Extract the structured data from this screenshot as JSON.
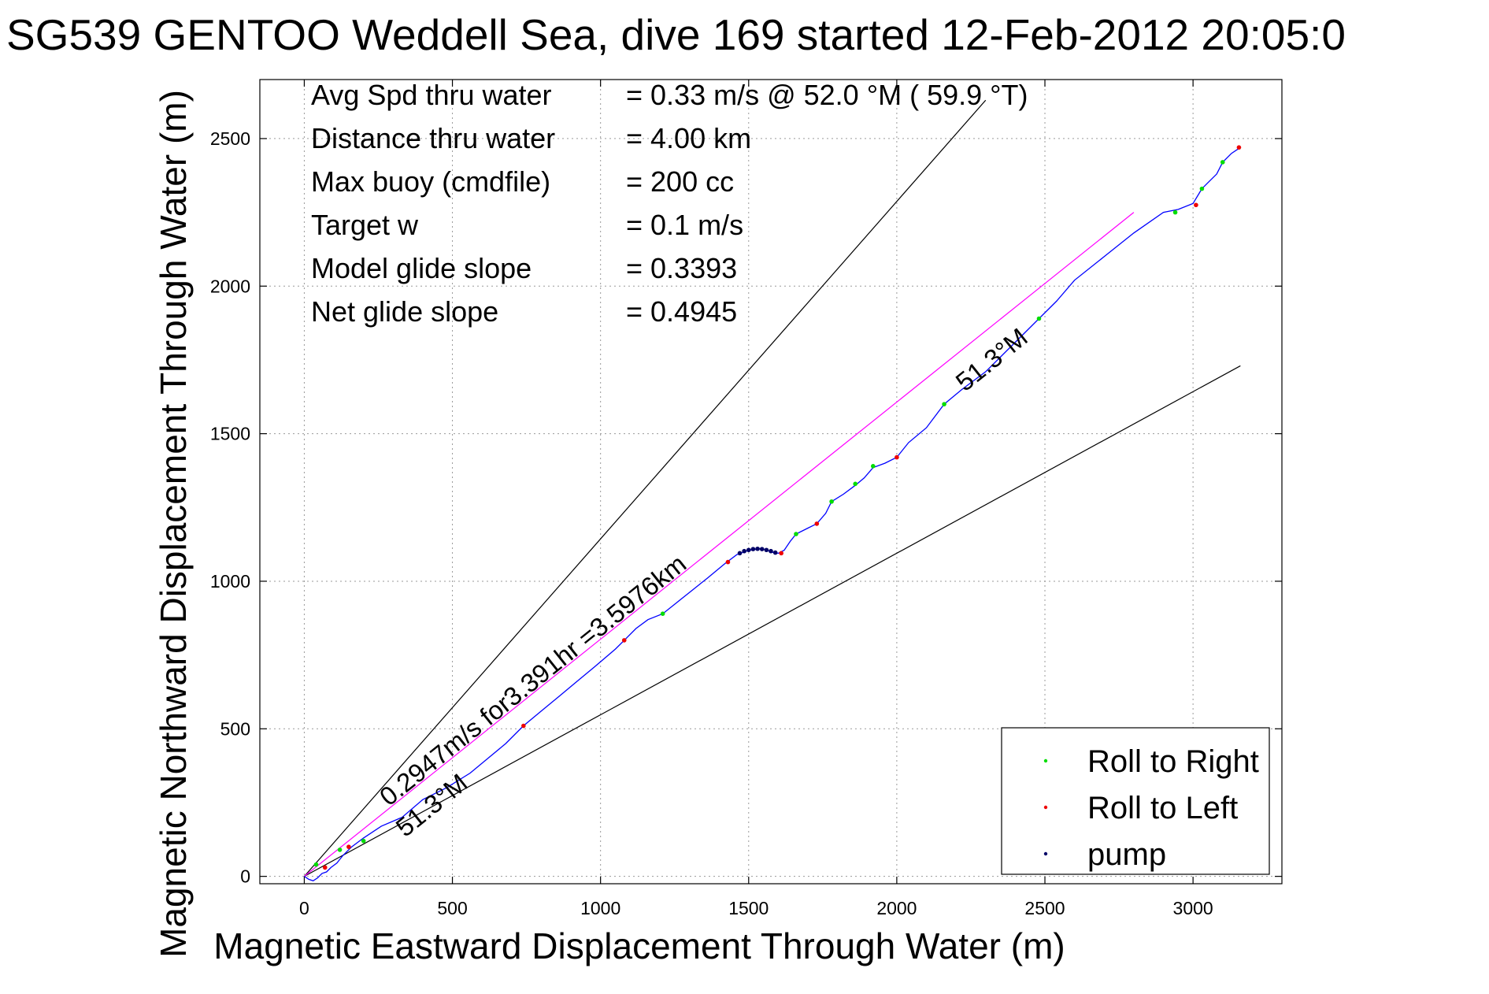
{
  "chart_data": {
    "type": "line",
    "title": "SG539 GENTOO Weddell Sea, dive 169 started 12-Feb-2012 20:05:0",
    "xlabel": "Magnetic Eastward Displacement Through Water (m)",
    "ylabel": "Magnetic Northward Displacement Through Water (m)",
    "xlim": [
      -150,
      3300
    ],
    "ylim": [
      -25,
      2700
    ],
    "xticks": [
      0,
      500,
      1000,
      1500,
      2000,
      2500,
      3000
    ],
    "yticks": [
      0,
      500,
      1000,
      1500,
      2000,
      2500
    ],
    "grid": true,
    "legend_position": "bottom-right",
    "stats": [
      {
        "label": "Avg Spd thru water",
        "value": "=  0.33 m/s @  52.0 °M ( 59.9 °T)"
      },
      {
        "label": "Distance thru water",
        "value": "=  4.00 km"
      },
      {
        "label": "Max buoy (cmdfile)",
        "value": "= 200 cc"
      },
      {
        "label": "Target w",
        "value": "= 0.1 m/s"
      },
      {
        "label": "Model glide slope",
        "value": "= 0.3393"
      },
      {
        "label": "Net glide slope",
        "value": "= 0.4945"
      }
    ],
    "annotations": [
      {
        "text": "0.2947m/s for3.391hr =3.5976km",
        "x": 285,
        "y": 235,
        "angle": 38.7
      },
      {
        "text": "51.3°M",
        "x": 340,
        "y": 130,
        "angle": 38.7
      },
      {
        "text": "51.3°M",
        "x": 2230,
        "y": 1640,
        "angle": 38.7
      }
    ],
    "reference_lines": [
      {
        "name": "upper bound",
        "color": "#000000",
        "points": [
          [
            0,
            0
          ],
          [
            2300,
            2630
          ]
        ]
      },
      {
        "name": "lower bound",
        "color": "#000000",
        "points": [
          [
            0,
            0
          ],
          [
            3160,
            1730
          ]
        ]
      },
      {
        "name": "net heading",
        "color": "#ff00ff",
        "points": [
          [
            0,
            0
          ],
          [
            2800,
            2250
          ]
        ]
      }
    ],
    "series": [
      {
        "name": "",
        "role": "track",
        "color": "#0000ff",
        "x": [
          0,
          15,
          30,
          45,
          60,
          75,
          90,
          110,
          130,
          160,
          200,
          260,
          330,
          400,
          480,
          560,
          620,
          680,
          740,
          800,
          860,
          920,
          980,
          1050,
          1080,
          1120,
          1160,
          1210,
          1260,
          1310,
          1360,
          1420,
          1460,
          1500,
          1540,
          1560,
          1580,
          1600,
          1620,
          1640,
          1660,
          1700,
          1730,
          1760,
          1780,
          1820,
          1860,
          1890,
          1920,
          1960,
          2000,
          2040,
          2100,
          2160,
          2220,
          2300,
          2400,
          2480,
          2540,
          2600,
          2700,
          2800,
          2900,
          2950,
          3000,
          3030,
          3050,
          3080,
          3100,
          3130,
          3160
        ],
        "y": [
          0,
          -10,
          -15,
          -5,
          10,
          15,
          30,
          45,
          70,
          100,
          130,
          170,
          200,
          260,
          300,
          350,
          400,
          450,
          510,
          560,
          610,
          660,
          710,
          770,
          800,
          840,
          870,
          890,
          930,
          970,
          1010,
          1060,
          1090,
          1105,
          1110,
          1106,
          1098,
          1095,
          1105,
          1135,
          1160,
          1180,
          1195,
          1230,
          1270,
          1295,
          1325,
          1350,
          1385,
          1400,
          1420,
          1470,
          1520,
          1600,
          1650,
          1710,
          1810,
          1890,
          1950,
          2020,
          2100,
          2180,
          2250,
          2260,
          2280,
          2330,
          2350,
          2380,
          2420,
          2450,
          2470
        ]
      },
      {
        "name": "Roll to Right",
        "role": "marker",
        "color": "#00dd00",
        "x": [
          40,
          120,
          200,
          1210,
          1660,
          1780,
          1860,
          1920,
          2160,
          2480,
          2940,
          3030,
          3100
        ],
        "y": [
          40,
          90,
          120,
          890,
          1160,
          1270,
          1330,
          1390,
          1600,
          1890,
          2250,
          2330,
          2420
        ]
      },
      {
        "name": "Roll to Left",
        "role": "marker",
        "color": "#ee0000",
        "x": [
          70,
          150,
          740,
          1080,
          1430,
          1610,
          1730,
          2000,
          3010,
          3155
        ],
        "y": [
          30,
          100,
          510,
          800,
          1065,
          1095,
          1195,
          1420,
          2275,
          2470
        ]
      },
      {
        "name": "pump",
        "role": "marker",
        "color": "#000066",
        "x": [
          1470,
          1485,
          1500,
          1515,
          1530,
          1545,
          1560,
          1575,
          1590
        ],
        "y": [
          1095,
          1102,
          1106,
          1109,
          1110,
          1109,
          1106,
          1102,
          1097
        ]
      }
    ]
  }
}
